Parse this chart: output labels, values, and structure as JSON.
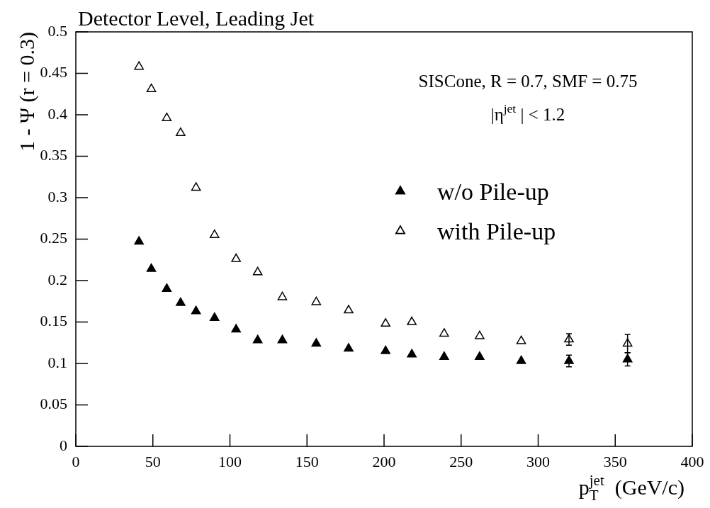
{
  "chart_data": {
    "type": "scatter",
    "title": "Detector Level, Leading Jet",
    "xlabel": "p$_{T}$$^{jet}$  (GeV/c)",
    "ylabel": "1 - Ψ (r = 0.3)",
    "annotations": [
      "SISCone, R = 0.7, SMF = 0.75",
      "|η$^{jet}$ | < 1.2"
    ],
    "x": [
      41,
      49,
      59,
      68,
      78,
      90,
      104,
      118,
      134,
      156,
      177,
      201,
      218,
      239,
      262,
      289,
      320,
      358
    ],
    "series": [
      {
        "name": "w/o Pile-up",
        "color": "#000000",
        "values": [
          0.247,
          0.214,
          0.19,
          0.173,
          0.163,
          0.155,
          0.141,
          0.128,
          0.128,
          0.124,
          0.118,
          0.115,
          0.111,
          0.108,
          0.108,
          0.103,
          0.103,
          0.105
        ],
        "errors": [
          null,
          null,
          null,
          null,
          null,
          null,
          null,
          null,
          null,
          null,
          null,
          null,
          null,
          null,
          null,
          null,
          0.007,
          0.008
        ]
      },
      {
        "name": "with Pile-up",
        "color": "#000000",
        "values": [
          0.458,
          0.431,
          0.396,
          0.378,
          0.312,
          0.255,
          0.226,
          0.21,
          0.18,
          0.174,
          0.164,
          0.148,
          0.15,
          0.136,
          0.133,
          0.127,
          0.129,
          0.124
        ],
        "errors": [
          null,
          null,
          null,
          null,
          null,
          null,
          null,
          null,
          null,
          null,
          null,
          null,
          null,
          null,
          null,
          null,
          0.007,
          0.011
        ]
      }
    ],
    "xlim": [
      0,
      400
    ],
    "xticks": [
      0,
      50,
      100,
      150,
      200,
      250,
      300,
      350,
      400
    ],
    "ylim": [
      0,
      0.5
    ],
    "yticks": [
      0,
      0.05,
      0.1,
      0.15,
      0.2,
      0.25,
      0.3,
      0.35,
      0.4,
      0.45,
      0.5
    ],
    "marker": "triangle",
    "legend": "right"
  }
}
